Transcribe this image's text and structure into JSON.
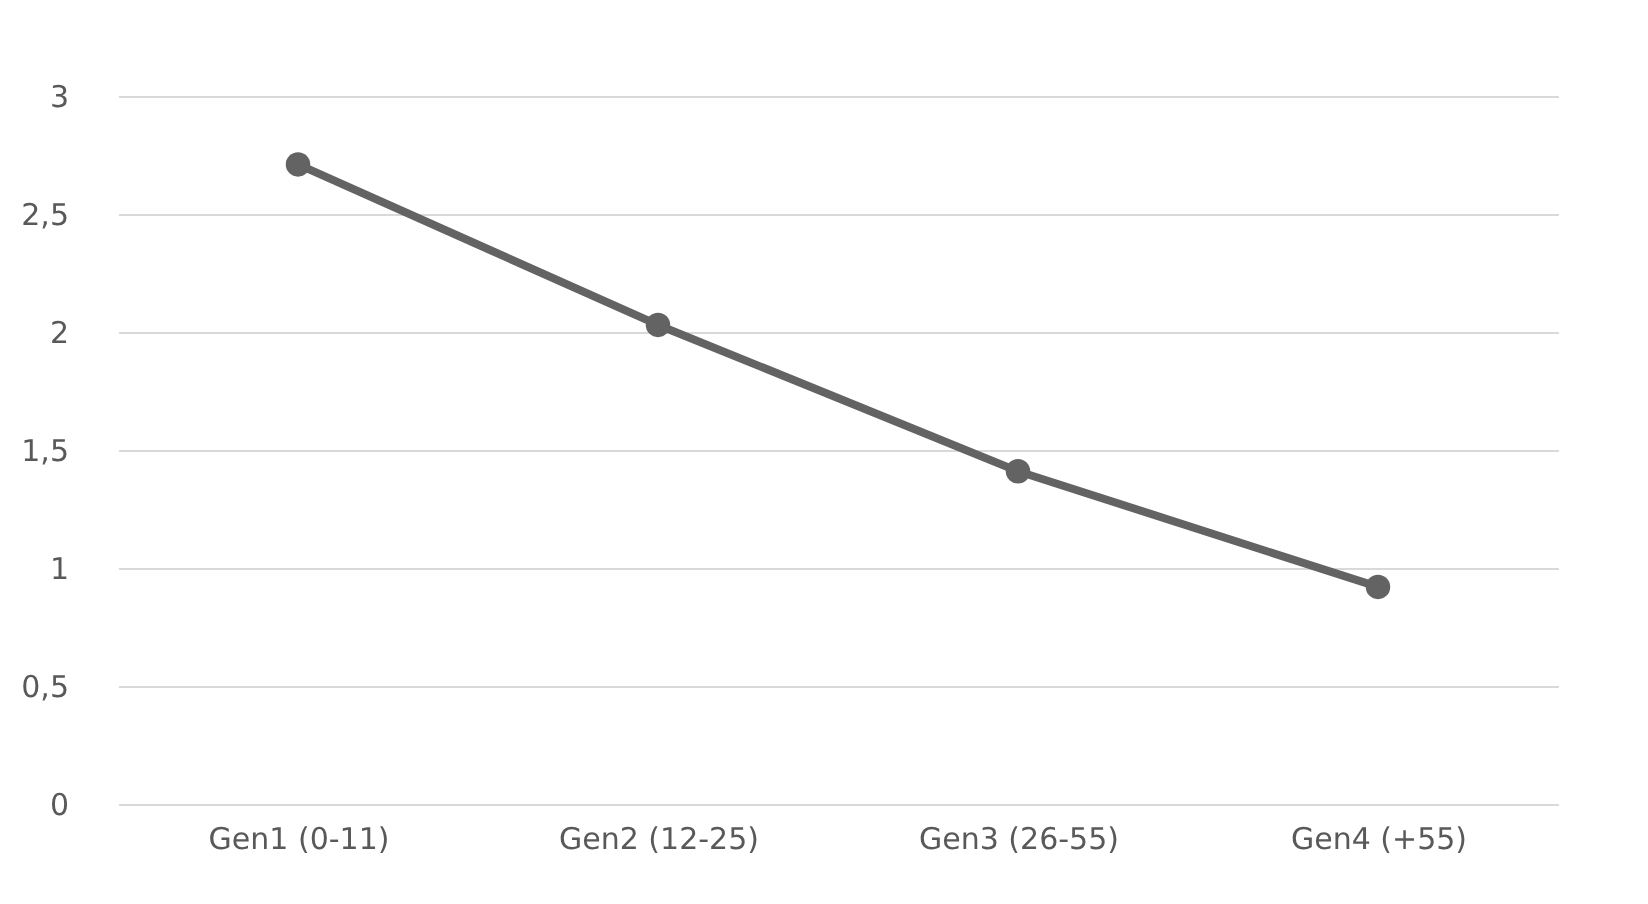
{
  "chart_data": {
    "type": "line",
    "categories": [
      "Gen1 (0-11)",
      "Gen2 (12-25)",
      "Gen3 (26-55)",
      "Gen4 (+55)"
    ],
    "series": [
      {
        "color": "#636363",
        "values": [
          2.71,
          2.03,
          1.41,
          0.92
        ]
      }
    ],
    "ylim": [
      0,
      3
    ],
    "yticks": [
      0,
      {
        "value": 0.5,
        "label": "0,5"
      },
      1,
      {
        "value": 1.5,
        "label": "1,5"
      },
      2,
      {
        "value": 2.5,
        "label": "2,5"
      },
      3
    ],
    "grid": "y",
    "marker": "circle",
    "line_style": "solid"
  }
}
